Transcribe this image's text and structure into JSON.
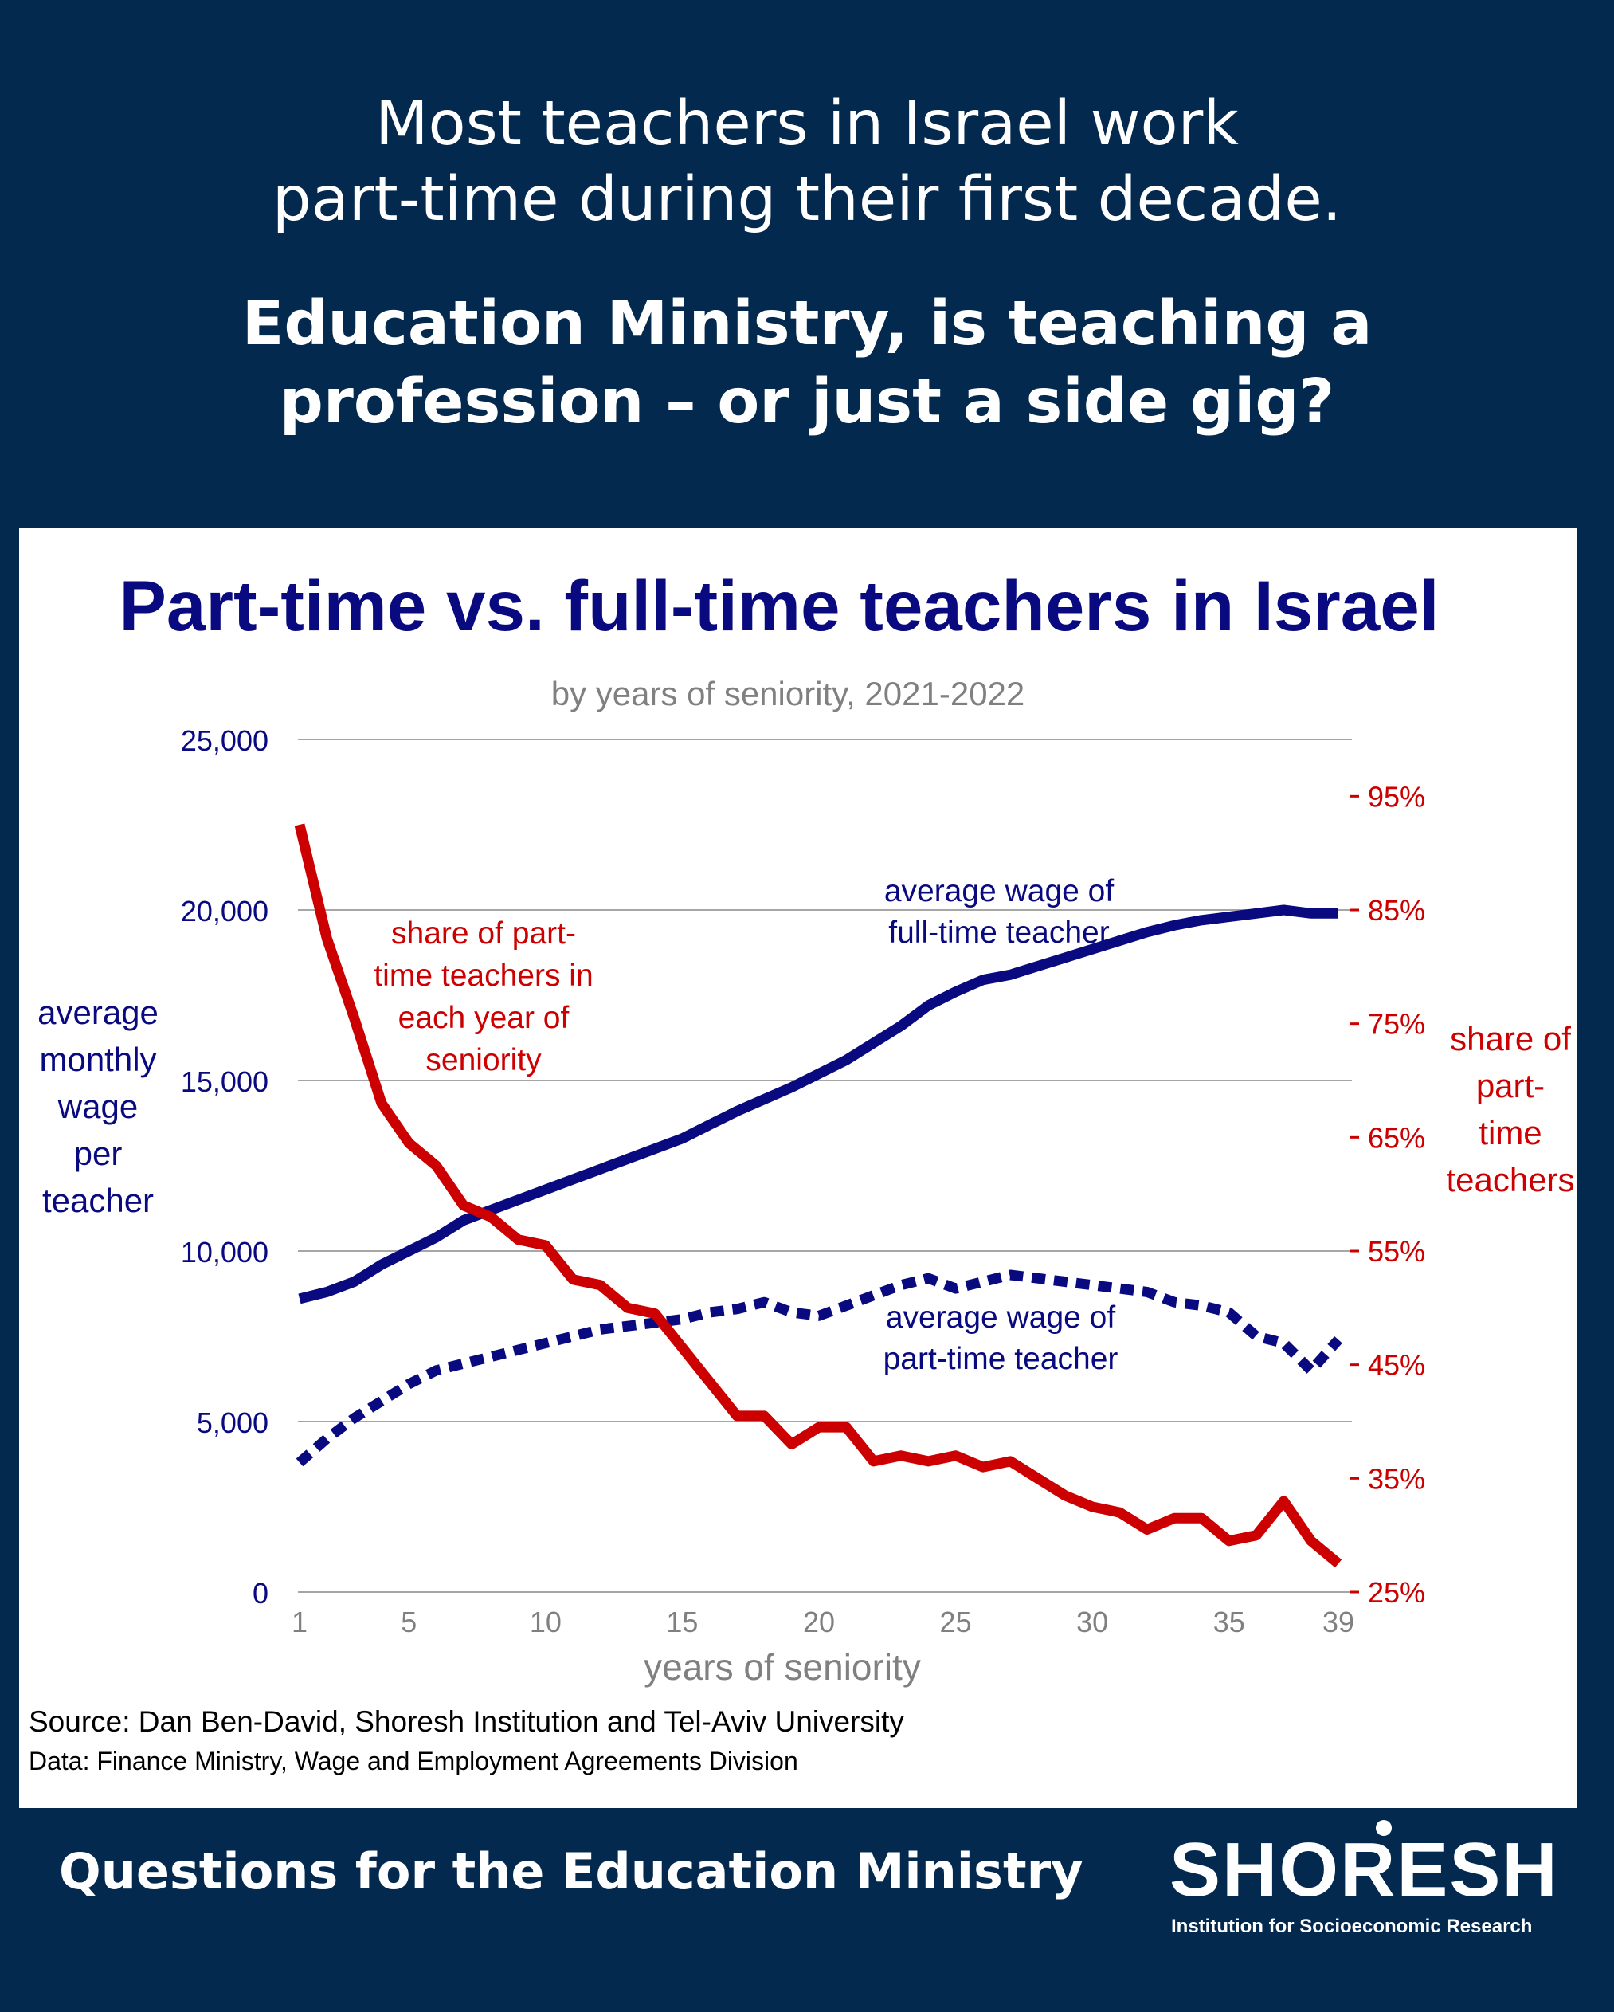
{
  "headline": {
    "line1": "Most teachers in Israel work",
    "line2": "part-time during their first decade.",
    "question1": "Education Ministry, is teaching a",
    "question2": "profession – or just a side gig?"
  },
  "footer": {
    "questions": "Questions for the Education Ministry",
    "logo_word": "SHORESH",
    "logo_sub": "Institution for Socioeconomic Research"
  },
  "colors": {
    "background": "#04294f",
    "navy": "#0a0a80",
    "red": "#cc0000",
    "gray": "#808080"
  },
  "chart_data": {
    "type": "line",
    "title": "Part-time vs. full-time teachers in Israel",
    "subtitle": "by years of seniority, 2021-2022",
    "xlabel": "years of seniority",
    "ylabel_left": [
      "average",
      "monthly",
      "wage",
      "per",
      "teacher"
    ],
    "ylabel_right": [
      "share of",
      "part-",
      "time",
      "teachers"
    ],
    "xlim": [
      1,
      39
    ],
    "x_ticks": [
      1,
      5,
      10,
      15,
      20,
      25,
      30,
      35,
      39
    ],
    "ylim_left": [
      0,
      25000
    ],
    "y_ticks_left": [
      "0",
      "5,000",
      "10,000",
      "15,000",
      "20,000",
      "25,000"
    ],
    "ylim_right": [
      0.25,
      1.0
    ],
    "y_ticks_right": [
      "25%",
      "35%",
      "45%",
      "55%",
      "65%",
      "75%",
      "85%",
      "95%"
    ],
    "grid": true,
    "x": [
      1,
      2,
      3,
      4,
      5,
      6,
      7,
      8,
      9,
      10,
      11,
      12,
      13,
      14,
      15,
      16,
      17,
      18,
      19,
      20,
      21,
      22,
      23,
      24,
      25,
      26,
      27,
      28,
      29,
      30,
      31,
      32,
      33,
      34,
      35,
      36,
      37,
      38,
      39
    ],
    "series": [
      {
        "name": "average wage of full-time teacher",
        "axis": "left",
        "style": "solid",
        "color": "#0a0a80",
        "annotation": [
          "average wage of",
          "full-time teacher"
        ],
        "values": [
          8600,
          8800,
          9100,
          9600,
          10000,
          10400,
          10900,
          11200,
          11500,
          11800,
          12100,
          12400,
          12700,
          13000,
          13300,
          13700,
          14100,
          14450,
          14800,
          15200,
          15600,
          16100,
          16600,
          17200,
          17600,
          17950,
          18100,
          18350,
          18600,
          18850,
          19100,
          19350,
          19550,
          19700,
          19800,
          19900,
          20000,
          19900,
          19900
        ],
        "label_pos": "upper-right"
      },
      {
        "name": "average wage of part-time teacher",
        "axis": "left",
        "style": "dotted",
        "color": "#0a0a80",
        "annotation": [
          "average wage of",
          "part-time teacher"
        ],
        "values": [
          3800,
          4500,
          5100,
          5600,
          6100,
          6500,
          6700,
          6900,
          7100,
          7300,
          7500,
          7700,
          7800,
          7900,
          8000,
          8200,
          8300,
          8500,
          8200,
          8100,
          8400,
          8700,
          9000,
          9200,
          8900,
          9100,
          9300,
          9200,
          9100,
          9000,
          8900,
          8800,
          8500,
          8400,
          8200,
          7500,
          7300,
          6500,
          7400
        ],
        "label_pos": "middle-right"
      },
      {
        "name": "share of part-time teachers in each year of seniority",
        "axis": "right",
        "style": "solid",
        "color": "#cc0000",
        "annotation": [
          "share of part-",
          "time teachers in",
          "each year of",
          "seniority"
        ],
        "values": [
          0.925,
          0.825,
          0.755,
          0.68,
          0.645,
          0.625,
          0.59,
          0.58,
          0.56,
          0.555,
          0.525,
          0.52,
          0.5,
          0.495,
          0.465,
          0.435,
          0.405,
          0.405,
          0.38,
          0.395,
          0.395,
          0.365,
          0.37,
          0.365,
          0.37,
          0.36,
          0.365,
          0.35,
          0.335,
          0.325,
          0.32,
          0.305,
          0.315,
          0.315,
          0.295,
          0.3,
          0.33,
          0.295,
          0.275
        ],
        "label_pos": "upper-left"
      }
    ],
    "source": "Source: Dan Ben-David, Shoresh Institution and Tel-Aviv University",
    "data_note": "Data: Finance Ministry, Wage and Employment Agreements Division"
  }
}
